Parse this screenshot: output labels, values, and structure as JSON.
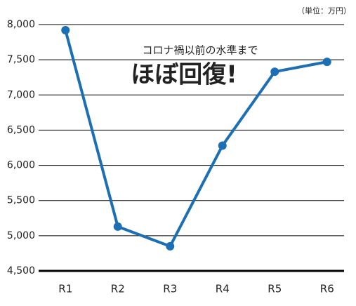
{
  "chart_data": {
    "type": "line",
    "unit_label": "（単位：万円）",
    "annotations": [
      "コロナ禍以前の水準まで",
      "ほぼ回復!"
    ],
    "categories": [
      "R1",
      "R2",
      "R3",
      "R4",
      "R5",
      "R6"
    ],
    "series": [
      {
        "color": "#1c6fb4",
        "values": [
          7920,
          5130,
          4850,
          6280,
          7330,
          7470
        ]
      }
    ],
    "ylim": [
      4500,
      8000
    ],
    "yticks": [
      {
        "value": 4500,
        "label": "4,500"
      },
      {
        "value": 5000,
        "label": "5,000"
      },
      {
        "value": 5500,
        "label": "5,500"
      },
      {
        "value": 6000,
        "label": "6,000"
      },
      {
        "value": 6500,
        "label": "6,500"
      },
      {
        "value": 7000,
        "label": "7,000"
      },
      {
        "value": 7500,
        "label": "7,500"
      },
      {
        "value": 8000,
        "label": "8,000"
      }
    ],
    "grid": true,
    "annotation_color": "#e8191e"
  }
}
